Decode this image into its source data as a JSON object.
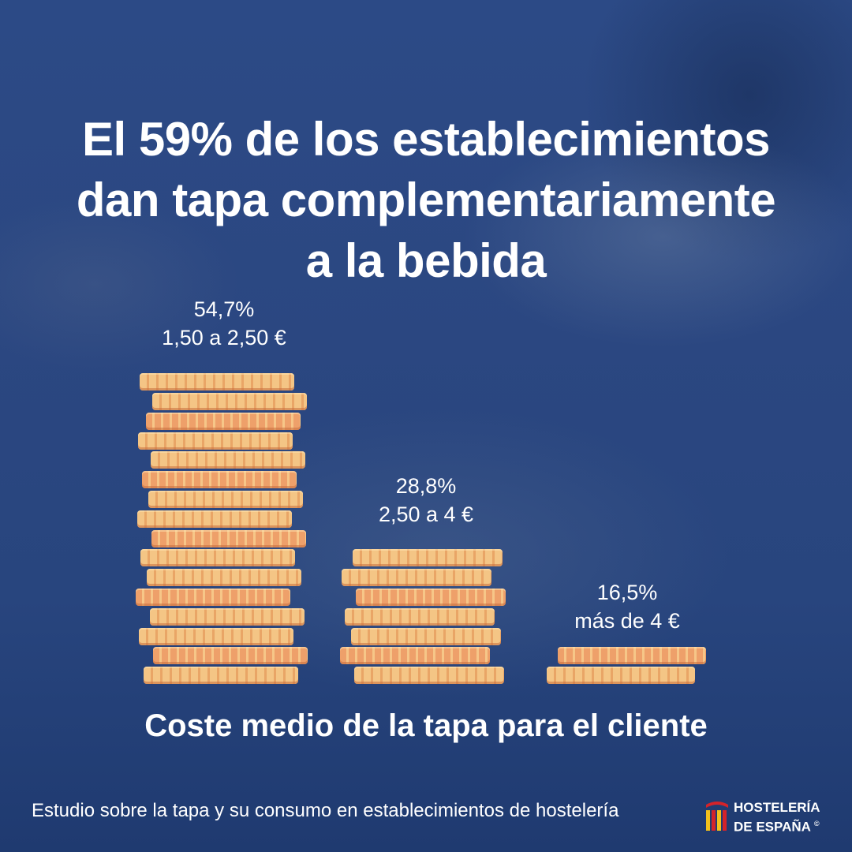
{
  "title": {
    "line1": "El 59% de los establecimientos",
    "line2": "dan tapa complementariamente",
    "line3": "a la bebida"
  },
  "chart_data": {
    "type": "bar",
    "title": "Coste medio de la tapa para el cliente",
    "categories": [
      "1,50 a 2,50 €",
      "2,50 a 4 €",
      "más de 4 €"
    ],
    "values": [
      54.7,
      28.8,
      16.5
    ],
    "value_labels": [
      "54,7%",
      "28,8%",
      "16,5%"
    ],
    "unit": "%",
    "bar_style": "stacked coins",
    "coin_counts": [
      16,
      7,
      2
    ]
  },
  "footer": {
    "source": "Estudio sobre la tapa y su consumo en establecimientos de hostelería"
  },
  "logo": {
    "line1": "HOSTELERÍA",
    "line2": "DE ESPAÑA",
    "mark": "©"
  },
  "colors": {
    "background": "#2b4781",
    "coin_light": "#f4c585",
    "coin_dark": "#e9a566",
    "text": "#ffffff",
    "logo_red": "#d4232a",
    "logo_yellow": "#f2c01c"
  }
}
